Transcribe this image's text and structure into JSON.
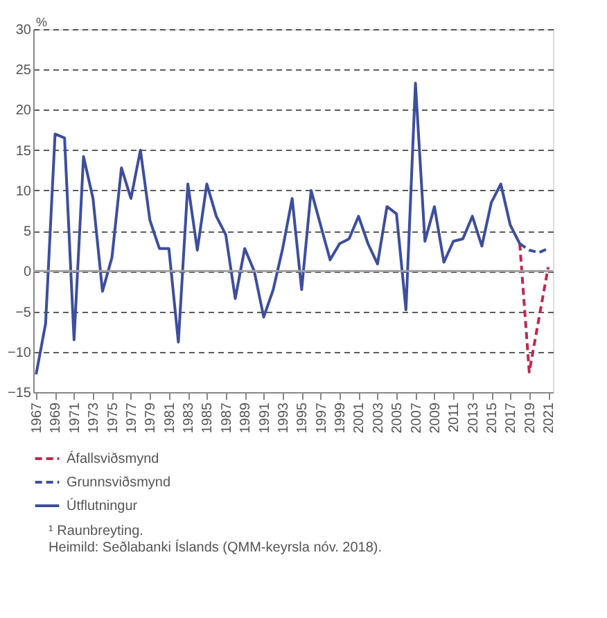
{
  "chart_data": {
    "type": "line",
    "ylabel": "%",
    "series": [
      {
        "name": "Áfallsviðsmynd",
        "color": "#c0284e",
        "line_style": "dashed",
        "x": [
          2018,
          2019,
          2020,
          2021
        ],
        "values": [
          3.4,
          -12.5,
          -6,
          0.5
        ]
      },
      {
        "name": "Grunnsviðsmynd",
        "color": "#3d4e9e",
        "line_style": "dashed",
        "x": [
          2018,
          2019,
          2020,
          2021
        ],
        "values": [
          3.4,
          2.6,
          2.3,
          2.8
        ]
      },
      {
        "name": "Útflutningur",
        "color": "#3d4e9e",
        "line_style": "solid",
        "x": [
          1967,
          1968,
          1969,
          1970,
          1971,
          1972,
          1973,
          1974,
          1975,
          1976,
          1977,
          1978,
          1979,
          1980,
          1981,
          1982,
          1983,
          1984,
          1985,
          1986,
          1987,
          1988,
          1989,
          1990,
          1991,
          1992,
          1993,
          1994,
          1995,
          1996,
          1997,
          1998,
          1999,
          2000,
          2001,
          2002,
          2003,
          2004,
          2005,
          2006,
          2007,
          2008,
          2009,
          2010,
          2011,
          2012,
          2013,
          2014,
          2015,
          2016,
          2017,
          2018
        ],
        "values": [
          -12.8,
          -6.5,
          17,
          16.5,
          -8.5,
          14.2,
          9,
          -2.5,
          1.7,
          12.8,
          9,
          15,
          6.3,
          2.8,
          2.8,
          -8.8,
          10.8,
          2.6,
          10.8,
          6.8,
          4.5,
          -3.4,
          2.8,
          0,
          -5.7,
          -2.3,
          2.8,
          9,
          -2.3,
          10,
          5.7,
          1.4,
          3.4,
          4,
          6.8,
          3.4,
          0.9,
          8,
          7.1,
          -4.8,
          23.3,
          3.7,
          8,
          1.1,
          3.7,
          4,
          6.8,
          3.1,
          8.5,
          10.8,
          5.7,
          3.4
        ]
      }
    ],
    "xlim": [
      1966.7,
      2021.5
    ],
    "xticks": [
      1967,
      1969,
      1971,
      1973,
      1975,
      1977,
      1979,
      1981,
      1983,
      1985,
      1987,
      1989,
      1991,
      1993,
      1995,
      1997,
      1999,
      2001,
      2003,
      2005,
      2007,
      2009,
      2011,
      2013,
      2015,
      2017,
      2019,
      2021
    ],
    "ylim": [
      -15,
      30
    ],
    "yticks": [
      -15,
      -10,
      -5,
      0,
      5,
      10,
      15,
      20,
      25,
      30
    ],
    "grid": "y",
    "ref_lines": [
      {
        "axis": "y",
        "value": 0,
        "color": "#a0a0a0"
      }
    ],
    "legend": "bottom",
    "marker": "none",
    "annotations": [
      "¹ Raunbreyting.",
      "Heimild: Seðlabanki Íslands (QMM-keyrsla nóv. 2018)."
    ]
  }
}
